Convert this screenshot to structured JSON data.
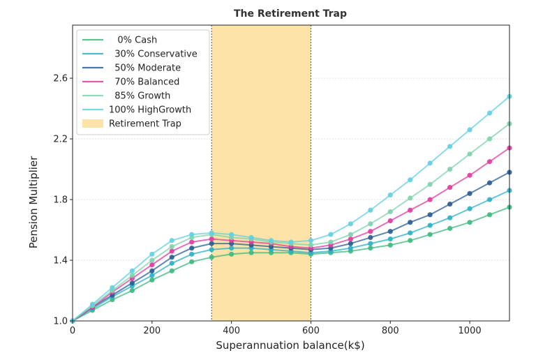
{
  "chart_data": {
    "type": "line",
    "title": "The Retirement Trap",
    "xlabel": "Superannuation balance(k$)",
    "ylabel": "Pension Multiplier",
    "xlim": [
      0,
      1100
    ],
    "ylim": [
      1.0,
      2.95
    ],
    "xticks": [
      0,
      200,
      400,
      600,
      800,
      1000
    ],
    "yticks": [
      1.0,
      1.4,
      1.8,
      2.2,
      2.6
    ],
    "xtick_labels": [
      "0",
      "200",
      "400",
      "600",
      "800",
      "1000"
    ],
    "ytick_labels": [
      "1.0",
      "1.4",
      "1.8",
      "2.2",
      "2.6"
    ],
    "grid": true,
    "legend_position": "top-left",
    "x": [
      0,
      50,
      100,
      150,
      200,
      250,
      300,
      350,
      400,
      450,
      500,
      550,
      600,
      650,
      700,
      750,
      800,
      850,
      900,
      950,
      1000,
      1050,
      1100
    ],
    "series": [
      {
        "name": "0% Cash",
        "label": "   0% Cash",
        "color": "#3dba80",
        "values": [
          1.0,
          1.07,
          1.14,
          1.2,
          1.27,
          1.33,
          1.39,
          1.42,
          1.44,
          1.45,
          1.45,
          1.45,
          1.44,
          1.45,
          1.46,
          1.48,
          1.5,
          1.53,
          1.57,
          1.61,
          1.65,
          1.7,
          1.75
        ]
      },
      {
        "name": "30% Conservative",
        "label": "  30% Conservative",
        "color": "#2cb0c6",
        "values": [
          1.0,
          1.08,
          1.16,
          1.23,
          1.3,
          1.38,
          1.44,
          1.47,
          1.48,
          1.48,
          1.47,
          1.46,
          1.45,
          1.46,
          1.48,
          1.51,
          1.54,
          1.58,
          1.63,
          1.68,
          1.74,
          1.8,
          1.86
        ]
      },
      {
        "name": "50% Moderate",
        "label": "  50% Moderate",
        "color": "#2a5d94",
        "values": [
          1.0,
          1.09,
          1.17,
          1.25,
          1.33,
          1.42,
          1.48,
          1.51,
          1.51,
          1.5,
          1.49,
          1.48,
          1.47,
          1.48,
          1.51,
          1.55,
          1.59,
          1.65,
          1.7,
          1.77,
          1.84,
          1.91,
          1.98
        ]
      },
      {
        "name": "70% Balanced",
        "label": "  70% Balanced",
        "color": "#e03c9e",
        "values": [
          1.0,
          1.09,
          1.19,
          1.28,
          1.37,
          1.46,
          1.52,
          1.54,
          1.53,
          1.52,
          1.51,
          1.49,
          1.48,
          1.5,
          1.54,
          1.59,
          1.66,
          1.73,
          1.8,
          1.88,
          1.96,
          2.05,
          2.14
        ]
      },
      {
        "name": "85% Growth",
        "label": "  85% Growth",
        "color": "#7fd3ac",
        "values": [
          1.0,
          1.1,
          1.2,
          1.3,
          1.4,
          1.49,
          1.55,
          1.57,
          1.55,
          1.54,
          1.52,
          1.51,
          1.5,
          1.52,
          1.57,
          1.64,
          1.72,
          1.81,
          1.9,
          2.0,
          2.1,
          2.2,
          2.3
        ]
      },
      {
        "name": "100% HighGrowth",
        "label": "100% HighGrowth",
        "color": "#62d0e0",
        "values": [
          1.0,
          1.11,
          1.22,
          1.33,
          1.44,
          1.53,
          1.57,
          1.58,
          1.57,
          1.55,
          1.53,
          1.52,
          1.53,
          1.57,
          1.64,
          1.73,
          1.83,
          1.93,
          2.04,
          2.15,
          2.26,
          2.37,
          2.48
        ]
      }
    ],
    "shaded_region": {
      "label": "Retirement Trap",
      "x_start": 350,
      "x_end": 600,
      "color": "#fde3a7",
      "edge_color": "#555555"
    }
  }
}
